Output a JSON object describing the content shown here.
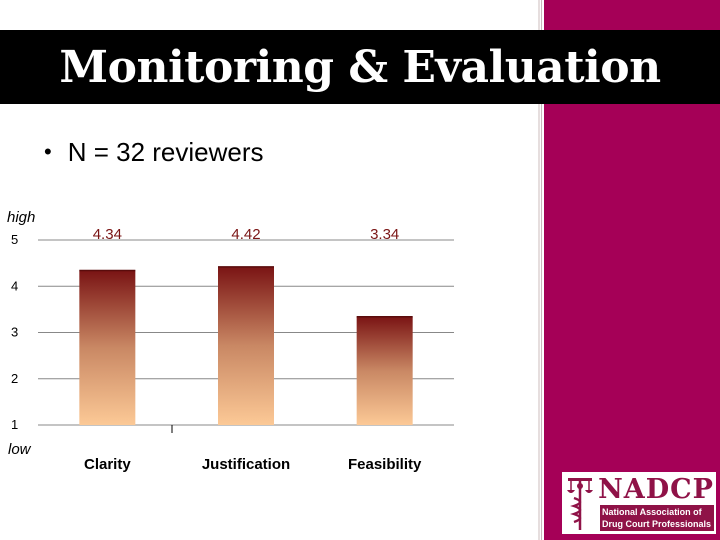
{
  "slide": {
    "title": "Monitoring & Evaluation",
    "bullet": "N = 32 reviewers"
  },
  "logo": {
    "name": "NADCP",
    "subtitle_line1": "National Association of",
    "subtitle_line2": "Drug Court Professionals"
  },
  "colors": {
    "side_panel": "#a50057",
    "title_bar": "#000000",
    "bar_top": "#7a1414",
    "bar_bottom": "#fcc996",
    "value_label": "#7a1414",
    "logo_accent": "#8f1247"
  },
  "chart_data": {
    "type": "bar",
    "categories": [
      "Clarity",
      "Justification",
      "Feasibility"
    ],
    "values": [
      4.34,
      4.42,
      3.34
    ],
    "data_labels": [
      "4.34",
      "4.42",
      "3.34"
    ],
    "yticks": [
      "1",
      "2",
      "3",
      "4",
      "5"
    ],
    "ylim": [
      1,
      5
    ],
    "y_high_label": "high",
    "y_low_label": "low",
    "grid": true
  }
}
